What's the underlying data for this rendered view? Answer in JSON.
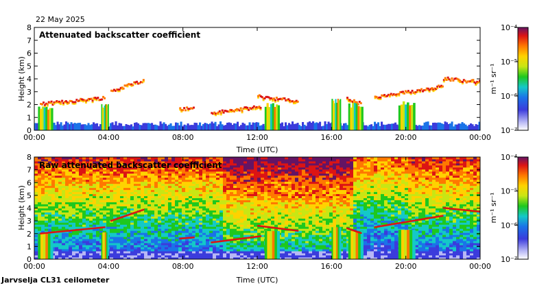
{
  "date": "22 May 2025",
  "station_label": "Jarvselja CL31 ceilometer",
  "colors": {
    "background": "#ffffff",
    "axis": "#000000"
  },
  "chart_data": [
    {
      "type": "heatmap",
      "title": "Attenuated backscatter coefficient",
      "xlabel": "Time (UTC)",
      "ylabel": "Height (km)",
      "xlim": [
        0,
        24
      ],
      "ylim": [
        0,
        8
      ],
      "x_ticks": [
        "00:00",
        "04:00",
        "08:00",
        "12:00",
        "16:00",
        "20:00",
        "00:00"
      ],
      "y_ticks": [
        "0",
        "1",
        "2",
        "3",
        "4",
        "5",
        "6",
        "7",
        "8"
      ],
      "colorbar": {
        "scale": "log",
        "units": "m⁻¹ sr⁻¹",
        "labels": [
          "10⁻⁷",
          "10⁻⁶",
          "10⁻⁵",
          "10⁻⁴"
        ]
      },
      "features": {
        "boundary_layer_top_km": 0.5,
        "cloud_layers": [
          {
            "t_start": 0.3,
            "t_end": 3.8,
            "height_km_start": 2.0,
            "height_km_end": 2.5
          },
          {
            "t_start": 4.1,
            "t_end": 5.9,
            "height_km_start": 3.0,
            "height_km_end": 3.9
          },
          {
            "t_start": 7.8,
            "t_end": 8.6,
            "height_km_start": 1.6,
            "height_km_end": 1.7
          },
          {
            "t_start": 9.5,
            "t_end": 12.2,
            "height_km_start": 1.3,
            "height_km_end": 1.8
          },
          {
            "t_start": 12.0,
            "t_end": 14.2,
            "height_km_start": 2.6,
            "height_km_end": 2.2
          },
          {
            "t_start": 16.8,
            "t_end": 17.6,
            "height_km_start": 2.4,
            "height_km_end": 2.0
          },
          {
            "t_start": 18.3,
            "t_end": 22.0,
            "height_km_start": 2.5,
            "height_km_end": 3.4
          },
          {
            "t_start": 22.0,
            "t_end": 24.0,
            "height_km_start": 4.0,
            "height_km_end": 3.7
          }
        ],
        "precipitation_columns": [
          {
            "t_start": 0.2,
            "t_end": 1.0,
            "top_km": 2.0
          },
          {
            "t_start": 3.6,
            "t_end": 4.0,
            "top_km": 2.1
          },
          {
            "t_start": 12.4,
            "t_end": 13.2,
            "top_km": 2.2
          },
          {
            "t_start": 16.0,
            "t_end": 16.5,
            "top_km": 2.5
          },
          {
            "t_start": 16.9,
            "t_end": 17.7,
            "top_km": 2.2
          },
          {
            "t_start": 19.6,
            "t_end": 20.5,
            "top_km": 2.3
          }
        ]
      }
    },
    {
      "type": "heatmap",
      "title": "Raw attenuated backscatter coefficient",
      "xlabel": "Time (UTC)",
      "ylabel": "Height (km)",
      "xlim": [
        0,
        24
      ],
      "ylim": [
        0,
        8
      ],
      "x_ticks": [
        "00:00",
        "04:00",
        "08:00",
        "12:00",
        "16:00",
        "20:00",
        "00:00"
      ],
      "y_ticks": [
        "0",
        "1",
        "2",
        "3",
        "4",
        "5",
        "6",
        "7",
        "8"
      ],
      "colorbar": {
        "scale": "log",
        "units": "m⁻¹ sr⁻¹",
        "labels": [
          "10⁻⁷",
          "10⁻⁶",
          "10⁻⁵",
          "10⁻⁴"
        ]
      }
    }
  ]
}
